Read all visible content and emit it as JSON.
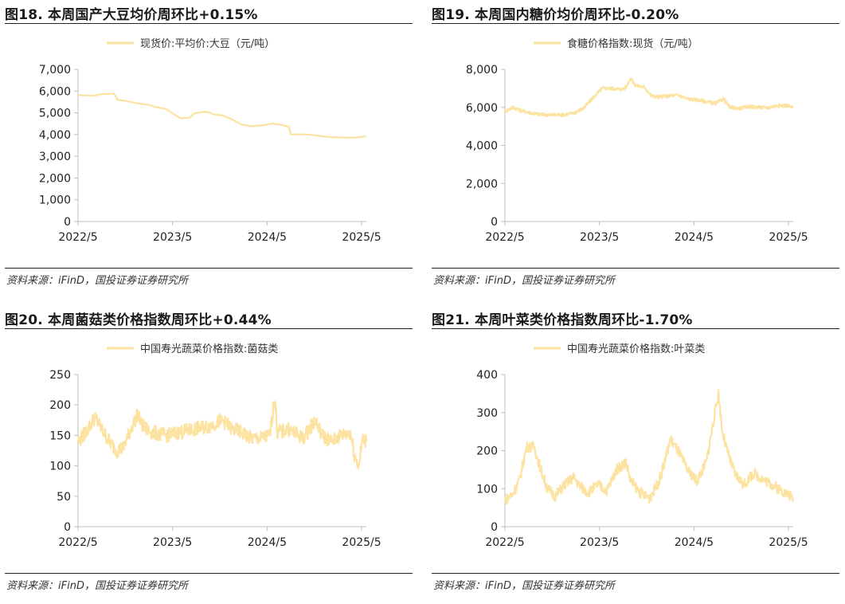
{
  "colors": {
    "series": "#fde3a1",
    "axis": "#bfbfbf",
    "rule": "#222222"
  },
  "panels": [
    {
      "title": "图18. 本周国产大豆均价周环比+0.15%",
      "source": "资料来源：iFinD，国投证券证券研究所"
    },
    {
      "title": "图19. 本周国内糖价均价周环比-0.20%",
      "source": "资料来源：iFinD，国投证券证券研究所"
    },
    {
      "title": "图20. 本周菌菇类价格指数周环比+0.44%",
      "source": "资料来源：iFinD，国投证券证券研究所"
    },
    {
      "title": "图21. 本周叶菜类价格指数周环比-1.70%",
      "source": "资料来源：iFinD，国投证券证券研究所"
    }
  ],
  "chart_data": [
    {
      "type": "line",
      "legend_position": "top",
      "grid": false,
      "x_ticks": [
        "2022/5",
        "2023/5",
        "2024/5",
        "2025/5"
      ],
      "x_range": [
        2022.37,
        2025.42
      ],
      "ylim": [
        0,
        7000
      ],
      "y_ticks": [
        0,
        1000,
        2000,
        3000,
        4000,
        5000,
        6000,
        7000
      ],
      "y_tick_labels": [
        "0",
        "1,000",
        "2,000",
        "3,000",
        "4,000",
        "5,000",
        "6,000",
        "7,000"
      ],
      "series": [
        {
          "name": "现货价:平均价:大豆（元/吨）",
          "noise": 0,
          "points": [
            [
              2022.37,
              5820
            ],
            [
              2022.45,
              5800
            ],
            [
              2022.55,
              5790
            ],
            [
              2022.6,
              5850
            ],
            [
              2022.75,
              5880
            ],
            [
              2022.79,
              5600
            ],
            [
              2022.9,
              5530
            ],
            [
              2023.0,
              5430
            ],
            [
              2023.1,
              5380
            ],
            [
              2023.2,
              5260
            ],
            [
              2023.3,
              5180
            ],
            [
              2023.35,
              5030
            ],
            [
              2023.45,
              4760
            ],
            [
              2023.55,
              4770
            ],
            [
              2023.6,
              4980
            ],
            [
              2023.7,
              5040
            ],
            [
              2023.75,
              5030
            ],
            [
              2023.8,
              4930
            ],
            [
              2023.9,
              4880
            ],
            [
              2024.0,
              4700
            ],
            [
              2024.1,
              4460
            ],
            [
              2024.2,
              4380
            ],
            [
              2024.35,
              4440
            ],
            [
              2024.42,
              4510
            ],
            [
              2024.5,
              4460
            ],
            [
              2024.6,
              4360
            ],
            [
              2024.62,
              4010
            ],
            [
              2024.8,
              4000
            ],
            [
              2024.9,
              3950
            ],
            [
              2025.0,
              3900
            ],
            [
              2025.1,
              3870
            ],
            [
              2025.2,
              3860
            ],
            [
              2025.3,
              3860
            ],
            [
              2025.42,
              3920
            ]
          ]
        }
      ]
    },
    {
      "type": "line",
      "legend_position": "top",
      "grid": false,
      "x_ticks": [
        "2022/5",
        "2023/5",
        "2024/5",
        "2025/5"
      ],
      "x_range": [
        2022.37,
        2025.42
      ],
      "ylim": [
        0,
        8000
      ],
      "y_ticks": [
        0,
        2000,
        4000,
        6000,
        8000
      ],
      "y_tick_labels": [
        "0",
        "2,000",
        "4,000",
        "6,000",
        "8,000"
      ],
      "series": [
        {
          "name": "食糖价格指数:现货（元/吨）",
          "noise": 90,
          "points": [
            [
              2022.37,
              5780
            ],
            [
              2022.45,
              6000
            ],
            [
              2022.55,
              5820
            ],
            [
              2022.7,
              5650
            ],
            [
              2022.85,
              5600
            ],
            [
              2023.0,
              5620
            ],
            [
              2023.1,
              5700
            ],
            [
              2023.2,
              5950
            ],
            [
              2023.3,
              6500
            ],
            [
              2023.4,
              7000
            ],
            [
              2023.5,
              7000
            ],
            [
              2023.6,
              6950
            ],
            [
              2023.65,
              7050
            ],
            [
              2023.7,
              7550
            ],
            [
              2023.75,
              7150
            ],
            [
              2023.85,
              7050
            ],
            [
              2023.92,
              6600
            ],
            [
              2024.0,
              6550
            ],
            [
              2024.1,
              6600
            ],
            [
              2024.2,
              6650
            ],
            [
              2024.3,
              6450
            ],
            [
              2024.4,
              6400
            ],
            [
              2024.5,
              6300
            ],
            [
              2024.6,
              6200
            ],
            [
              2024.68,
              6450
            ],
            [
              2024.75,
              6000
            ],
            [
              2024.85,
              5950
            ],
            [
              2024.95,
              6050
            ],
            [
              2025.05,
              6000
            ],
            [
              2025.15,
              5980
            ],
            [
              2025.25,
              6100
            ],
            [
              2025.35,
              6100
            ],
            [
              2025.42,
              5980
            ]
          ]
        }
      ]
    },
    {
      "type": "line",
      "legend_position": "top",
      "grid": false,
      "x_ticks": [
        "2022/5",
        "2023/5",
        "2024/5",
        "2025/5"
      ],
      "x_range": [
        2022.37,
        2025.42
      ],
      "ylim": [
        0,
        250
      ],
      "y_ticks": [
        0,
        50,
        100,
        150,
        200,
        250
      ],
      "y_tick_labels": [
        "0",
        "50",
        "100",
        "150",
        "200",
        "250"
      ],
      "series": [
        {
          "name": "中国寿光蔬菜价格指数:菌菇类",
          "noise": 12,
          "points": [
            [
              2022.37,
              140
            ],
            [
              2022.45,
              155
            ],
            [
              2022.55,
              180
            ],
            [
              2022.62,
              160
            ],
            [
              2022.7,
              140
            ],
            [
              2022.78,
              125
            ],
            [
              2022.85,
              130
            ],
            [
              2022.9,
              150
            ],
            [
              2023.0,
              185
            ],
            [
              2023.05,
              165
            ],
            [
              2023.15,
              155
            ],
            [
              2023.3,
              150
            ],
            [
              2023.45,
              155
            ],
            [
              2023.6,
              160
            ],
            [
              2023.75,
              165
            ],
            [
              2023.9,
              175
            ],
            [
              2024.0,
              160
            ],
            [
              2024.1,
              155
            ],
            [
              2024.2,
              145
            ],
            [
              2024.3,
              145
            ],
            [
              2024.4,
              150
            ],
            [
              2024.45,
              215
            ],
            [
              2024.48,
              155
            ],
            [
              2024.6,
              160
            ],
            [
              2024.75,
              145
            ],
            [
              2024.88,
              175
            ],
            [
              2024.95,
              150
            ],
            [
              2025.05,
              140
            ],
            [
              2025.15,
              150
            ],
            [
              2025.25,
              155
            ],
            [
              2025.3,
              115
            ],
            [
              2025.34,
              100
            ],
            [
              2025.38,
              145
            ],
            [
              2025.42,
              140
            ]
          ]
        }
      ]
    },
    {
      "type": "line",
      "legend_position": "top",
      "grid": false,
      "x_ticks": [
        "2022/5",
        "2023/5",
        "2024/5",
        "2025/5"
      ],
      "x_range": [
        2022.37,
        2025.42
      ],
      "ylim": [
        0,
        400
      ],
      "y_ticks": [
        0,
        100,
        200,
        300,
        400
      ],
      "y_tick_labels": [
        "0",
        "100",
        "200",
        "300",
        "400"
      ],
      "series": [
        {
          "name": "中国寿光蔬菜价格指数:叶菜类",
          "noise": 14,
          "points": [
            [
              2022.37,
              70
            ],
            [
              2022.45,
              85
            ],
            [
              2022.52,
              120
            ],
            [
              2022.6,
              210
            ],
            [
              2022.68,
              210
            ],
            [
              2022.75,
              150
            ],
            [
              2022.82,
              100
            ],
            [
              2022.9,
              80
            ],
            [
              2023.0,
              110
            ],
            [
              2023.1,
              130
            ],
            [
              2023.15,
              110
            ],
            [
              2023.25,
              90
            ],
            [
              2023.35,
              110
            ],
            [
              2023.45,
              95
            ],
            [
              2023.55,
              150
            ],
            [
              2023.65,
              170
            ],
            [
              2023.7,
              120
            ],
            [
              2023.8,
              90
            ],
            [
              2023.9,
              75
            ],
            [
              2024.0,
              120
            ],
            [
              2024.05,
              160
            ],
            [
              2024.12,
              230
            ],
            [
              2024.2,
              200
            ],
            [
              2024.3,
              150
            ],
            [
              2024.4,
              120
            ],
            [
              2024.5,
              170
            ],
            [
              2024.55,
              240
            ],
            [
              2024.6,
              310
            ],
            [
              2024.63,
              350
            ],
            [
              2024.67,
              250
            ],
            [
              2024.72,
              200
            ],
            [
              2024.8,
              140
            ],
            [
              2024.9,
              110
            ],
            [
              2025.0,
              140
            ],
            [
              2025.1,
              125
            ],
            [
              2025.2,
              110
            ],
            [
              2025.3,
              95
            ],
            [
              2025.42,
              75
            ]
          ]
        }
      ]
    }
  ]
}
